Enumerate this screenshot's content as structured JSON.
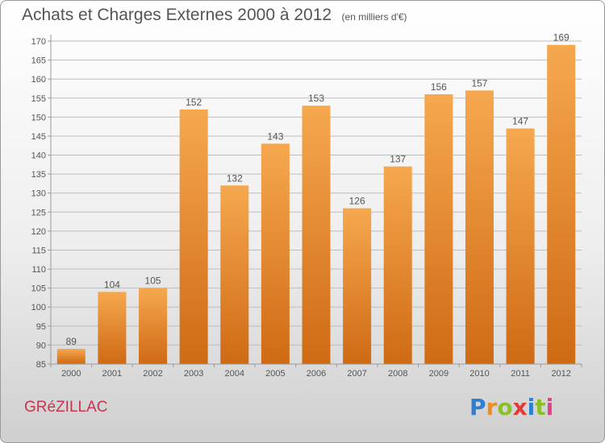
{
  "title": "Achats et Charges Externes 2000 à 2012",
  "unit": "(en milliers d'€)",
  "location": "GRéZILLAC",
  "logo": {
    "text": "Proxiti",
    "letters": [
      "P",
      "r",
      "o",
      "x",
      "i",
      "t",
      "i"
    ],
    "colors": [
      "#2e7fd0",
      "#f28c1c",
      "#8dbf2a",
      "#e23a3a",
      "#2e7fd0",
      "#8dbf2a",
      "#e3408a"
    ]
  },
  "colors": {
    "bar_top": "#f6a84f",
    "bar_bottom": "#cf6a14",
    "grid": "#bdbdbd",
    "text": "#555555"
  },
  "chart_data": {
    "type": "bar",
    "title": "Achats et Charges Externes 2000 à 2012",
    "subtitle": "(en milliers d'€)",
    "categories": [
      "2000",
      "2001",
      "2002",
      "2003",
      "2004",
      "2005",
      "2006",
      "2007",
      "2008",
      "2009",
      "2010",
      "2011",
      "2012"
    ],
    "values": [
      89,
      104,
      105,
      152,
      132,
      143,
      153,
      126,
      137,
      156,
      157,
      147,
      169
    ],
    "ylim": [
      85,
      170
    ],
    "yticks": [
      85,
      90,
      95,
      100,
      105,
      110,
      115,
      120,
      125,
      130,
      135,
      140,
      145,
      150,
      155,
      160,
      165,
      170
    ],
    "grid": true,
    "data_labels": true
  }
}
